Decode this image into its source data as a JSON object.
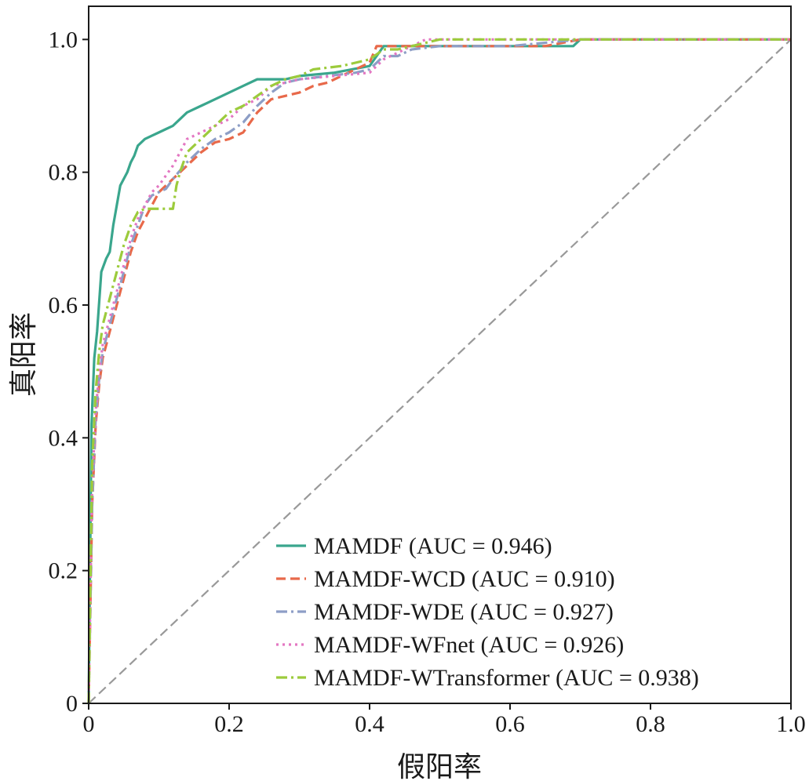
{
  "chart_data": {
    "type": "line",
    "title": "",
    "xlabel": "假阳率",
    "ylabel": "真阳率",
    "xlim": [
      0,
      1
    ],
    "ylim": [
      0,
      1.05
    ],
    "xticks": [
      0,
      0.2,
      0.4,
      0.6,
      0.8,
      1.0
    ],
    "xtick_labels": [
      "0",
      "0.2",
      "0.4",
      "0.6",
      "0.8",
      "1.0"
    ],
    "yticks": [
      0,
      0.2,
      0.4,
      0.6,
      0.8,
      1.0
    ],
    "ytick_labels": [
      "0",
      "0.2",
      "0.4",
      "0.6",
      "0.8",
      "1.0"
    ],
    "grid": false,
    "legend_position": "lower-right",
    "series": [
      {
        "name": "MAMDF (AUC = 0.946)",
        "color": "#3aa68d",
        "dash": "solid",
        "x": [
          0,
          0.004,
          0.008,
          0.012,
          0.018,
          0.025,
          0.03,
          0.035,
          0.04,
          0.045,
          0.05,
          0.055,
          0.06,
          0.065,
          0.07,
          0.075,
          0.08,
          0.09,
          0.1,
          0.11,
          0.12,
          0.13,
          0.14,
          0.15,
          0.16,
          0.17,
          0.18,
          0.19,
          0.2,
          0.22,
          0.24,
          0.26,
          0.28,
          0.3,
          0.35,
          0.4,
          0.41,
          0.42,
          0.43,
          0.45,
          0.5,
          0.6,
          0.65,
          0.69,
          0.7,
          0.75,
          1.0
        ],
        "y": [
          0,
          0.42,
          0.52,
          0.56,
          0.65,
          0.67,
          0.68,
          0.72,
          0.75,
          0.78,
          0.79,
          0.8,
          0.815,
          0.825,
          0.84,
          0.845,
          0.85,
          0.855,
          0.86,
          0.865,
          0.87,
          0.88,
          0.89,
          0.895,
          0.9,
          0.905,
          0.91,
          0.915,
          0.92,
          0.93,
          0.94,
          0.94,
          0.94,
          0.945,
          0.95,
          0.96,
          0.975,
          0.99,
          0.99,
          0.99,
          0.99,
          0.99,
          0.99,
          0.99,
          1.0,
          1.0,
          1.0
        ]
      },
      {
        "name": "MAMDF-WCD (AUC = 0.910)",
        "color": "#e8694a",
        "dash": "dashed",
        "x": [
          0,
          0.005,
          0.01,
          0.015,
          0.02,
          0.03,
          0.04,
          0.05,
          0.06,
          0.07,
          0.08,
          0.09,
          0.1,
          0.12,
          0.14,
          0.16,
          0.18,
          0.2,
          0.22,
          0.24,
          0.26,
          0.28,
          0.3,
          0.32,
          0.34,
          0.36,
          0.38,
          0.4,
          0.41,
          0.42,
          0.45,
          0.5,
          0.6,
          0.65,
          0.7,
          1.0
        ],
        "y": [
          0,
          0.3,
          0.42,
          0.48,
          0.52,
          0.56,
          0.6,
          0.64,
          0.68,
          0.71,
          0.73,
          0.75,
          0.77,
          0.79,
          0.81,
          0.83,
          0.845,
          0.85,
          0.86,
          0.89,
          0.91,
          0.915,
          0.92,
          0.93,
          0.935,
          0.945,
          0.955,
          0.965,
          0.99,
          0.99,
          0.99,
          0.99,
          0.99,
          0.99,
          1.0,
          1.0
        ]
      },
      {
        "name": "MAMDF-WDE (AUC = 0.927)",
        "color": "#8d9ec6",
        "dash": "dashdot",
        "x": [
          0,
          0.005,
          0.01,
          0.015,
          0.02,
          0.03,
          0.04,
          0.05,
          0.06,
          0.07,
          0.08,
          0.09,
          0.1,
          0.11,
          0.12,
          0.14,
          0.16,
          0.18,
          0.2,
          0.22,
          0.24,
          0.26,
          0.28,
          0.3,
          0.34,
          0.38,
          0.4,
          0.42,
          0.44,
          0.46,
          0.5,
          0.6,
          0.7,
          1.0
        ],
        "y": [
          0,
          0.3,
          0.43,
          0.49,
          0.53,
          0.57,
          0.61,
          0.65,
          0.69,
          0.72,
          0.75,
          0.765,
          0.77,
          0.775,
          0.79,
          0.815,
          0.835,
          0.85,
          0.86,
          0.875,
          0.9,
          0.92,
          0.935,
          0.94,
          0.945,
          0.95,
          0.955,
          0.975,
          0.975,
          0.985,
          0.99,
          0.99,
          1.0,
          1.0
        ]
      },
      {
        "name": "MAMDF-WFnet (AUC = 0.926)",
        "color": "#e377c2",
        "dash": "dotted",
        "x": [
          0,
          0.005,
          0.01,
          0.015,
          0.02,
          0.03,
          0.04,
          0.05,
          0.06,
          0.07,
          0.08,
          0.09,
          0.1,
          0.12,
          0.14,
          0.16,
          0.18,
          0.2,
          0.22,
          0.24,
          0.26,
          0.28,
          0.3,
          0.35,
          0.4,
          0.42,
          0.45,
          0.48,
          0.5,
          0.6,
          0.7,
          1.0
        ],
        "y": [
          0,
          0.33,
          0.44,
          0.5,
          0.54,
          0.58,
          0.62,
          0.66,
          0.7,
          0.73,
          0.75,
          0.77,
          0.78,
          0.81,
          0.85,
          0.86,
          0.87,
          0.88,
          0.9,
          0.91,
          0.93,
          0.935,
          0.94,
          0.945,
          0.95,
          0.97,
          0.985,
          1.0,
          1.0,
          1.0,
          1.0,
          1.0
        ]
      },
      {
        "name": "MAMDF-WTransformer (AUC = 0.938)",
        "color": "#9ccb3c",
        "dash": "dashdot",
        "x": [
          0,
          0.005,
          0.01,
          0.015,
          0.02,
          0.03,
          0.04,
          0.05,
          0.06,
          0.07,
          0.08,
          0.085,
          0.1,
          0.11,
          0.12,
          0.125,
          0.13,
          0.14,
          0.16,
          0.18,
          0.2,
          0.22,
          0.24,
          0.26,
          0.28,
          0.3,
          0.32,
          0.36,
          0.4,
          0.42,
          0.44,
          0.46,
          0.5,
          0.6,
          0.7,
          1.0
        ],
        "y": [
          0,
          0.36,
          0.47,
          0.53,
          0.57,
          0.61,
          0.65,
          0.69,
          0.72,
          0.74,
          0.745,
          0.745,
          0.745,
          0.745,
          0.745,
          0.78,
          0.8,
          0.83,
          0.85,
          0.87,
          0.89,
          0.9,
          0.915,
          0.93,
          0.94,
          0.945,
          0.955,
          0.96,
          0.97,
          0.985,
          0.985,
          0.99,
          1.0,
          1.0,
          1.0,
          1.0
        ]
      }
    ],
    "reference_line": {
      "x": [
        0,
        1
      ],
      "y": [
        0,
        1
      ],
      "color": "#999999",
      "dash": "dashed"
    }
  }
}
